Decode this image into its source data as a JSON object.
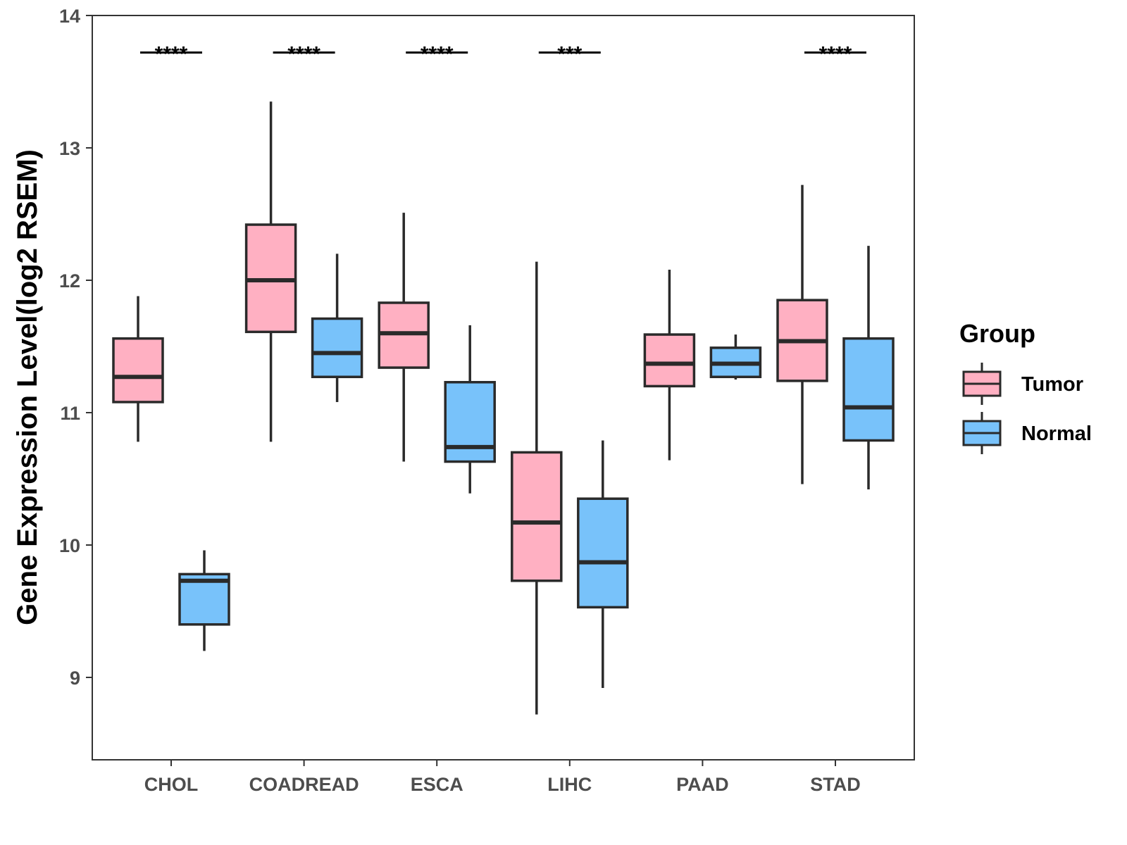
{
  "chart_data": {
    "type": "box",
    "title": "",
    "xlabel": "",
    "ylabel": "Gene Expression Level(log2 RSEM)",
    "ylim": [
      8.4,
      14.0
    ],
    "yticks": [
      9,
      10,
      11,
      12,
      13,
      14
    ],
    "categories": [
      "CHOL",
      "COADREAD",
      "ESCA",
      "LIHC",
      "PAAD",
      "STAD"
    ],
    "legend": {
      "title": "Group",
      "position": "right",
      "entries": [
        {
          "name": "Tumor",
          "color": "#FFB0C2"
        },
        {
          "name": "Normal",
          "color": "#78C2FA"
        }
      ]
    },
    "series": [
      {
        "name": "Tumor",
        "color": "#FFB0C2",
        "boxes": [
          {
            "category": "CHOL",
            "min": 10.78,
            "q1": 11.08,
            "median": 11.27,
            "q3": 11.56,
            "max": 11.88
          },
          {
            "category": "COADREAD",
            "min": 10.78,
            "q1": 11.61,
            "median": 12.0,
            "q3": 12.42,
            "max": 13.35
          },
          {
            "category": "ESCA",
            "min": 10.63,
            "q1": 11.34,
            "median": 11.6,
            "q3": 11.83,
            "max": 12.51
          },
          {
            "category": "LIHC",
            "min": 8.72,
            "q1": 9.73,
            "median": 10.17,
            "q3": 10.7,
            "max": 12.14
          },
          {
            "category": "PAAD",
            "min": 10.64,
            "q1": 11.2,
            "median": 11.37,
            "q3": 11.59,
            "max": 12.08
          },
          {
            "category": "STAD",
            "min": 10.46,
            "q1": 11.24,
            "median": 11.54,
            "q3": 11.85,
            "max": 12.72
          }
        ]
      },
      {
        "name": "Normal",
        "color": "#78C2FA",
        "boxes": [
          {
            "category": "CHOL",
            "min": 9.2,
            "q1": 9.4,
            "median": 9.73,
            "q3": 9.78,
            "max": 9.96
          },
          {
            "category": "COADREAD",
            "min": 11.08,
            "q1": 11.27,
            "median": 11.45,
            "q3": 11.71,
            "max": 12.2
          },
          {
            "category": "ESCA",
            "min": 10.39,
            "q1": 10.63,
            "median": 10.74,
            "q3": 11.23,
            "max": 11.66
          },
          {
            "category": "LIHC",
            "min": 8.92,
            "q1": 9.53,
            "median": 9.87,
            "q3": 10.35,
            "max": 10.79
          },
          {
            "category": "PAAD",
            "min": 11.25,
            "q1": 11.27,
            "median": 11.37,
            "q3": 11.49,
            "max": 11.59
          },
          {
            "category": "STAD",
            "min": 10.42,
            "q1": 10.79,
            "median": 11.04,
            "q3": 11.56,
            "max": 12.26
          }
        ]
      }
    ],
    "annotations": [
      {
        "category": "CHOL",
        "label": "****",
        "y": 13.72
      },
      {
        "category": "COADREAD",
        "label": "****",
        "y": 13.72
      },
      {
        "category": "ESCA",
        "label": "****",
        "y": 13.72
      },
      {
        "category": "LIHC",
        "label": "***",
        "y": 13.72
      },
      {
        "category": "STAD",
        "label": "****",
        "y": 13.72
      }
    ]
  }
}
